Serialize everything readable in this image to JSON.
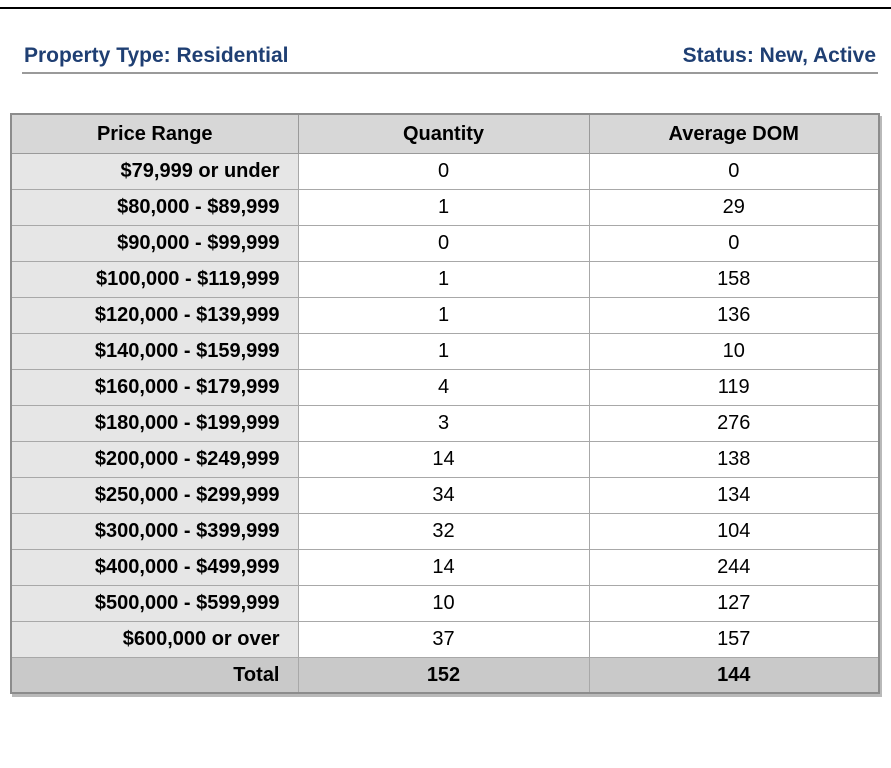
{
  "header": {
    "property_type": "Property Type: Residential",
    "status": "Status: New, Active"
  },
  "table": {
    "columns": [
      "Price Range",
      "Quantity",
      "Average DOM"
    ],
    "rows": [
      {
        "range": "$79,999 or under",
        "quantity": "0",
        "avg_dom": "0"
      },
      {
        "range": "$80,000 - $89,999",
        "quantity": "1",
        "avg_dom": "29"
      },
      {
        "range": "$90,000 - $99,999",
        "quantity": "0",
        "avg_dom": "0"
      },
      {
        "range": "$100,000 - $119,999",
        "quantity": "1",
        "avg_dom": "158"
      },
      {
        "range": "$120,000 - $139,999",
        "quantity": "1",
        "avg_dom": "136"
      },
      {
        "range": "$140,000 - $159,999",
        "quantity": "1",
        "avg_dom": "10"
      },
      {
        "range": "$160,000 - $179,999",
        "quantity": "4",
        "avg_dom": "119"
      },
      {
        "range": "$180,000 - $199,999",
        "quantity": "3",
        "avg_dom": "276"
      },
      {
        "range": "$200,000 - $249,999",
        "quantity": "14",
        "avg_dom": "138"
      },
      {
        "range": "$250,000 - $299,999",
        "quantity": "34",
        "avg_dom": "134"
      },
      {
        "range": "$300,000 - $399,999",
        "quantity": "32",
        "avg_dom": "104"
      },
      {
        "range": "$400,000 - $499,999",
        "quantity": "14",
        "avg_dom": "244"
      },
      {
        "range": "$500,000 - $599,999",
        "quantity": "10",
        "avg_dom": "127"
      },
      {
        "range": "$600,000 or over",
        "quantity": "37",
        "avg_dom": "157"
      }
    ],
    "total": {
      "label": "Total",
      "quantity": "152",
      "avg_dom": "144"
    }
  },
  "colors": {
    "header_text": "#1f3f73",
    "header_cell_bg": "#d7d7d7",
    "range_cell_bg": "#e6e6e6",
    "total_row_bg": "#c9c9c9"
  }
}
